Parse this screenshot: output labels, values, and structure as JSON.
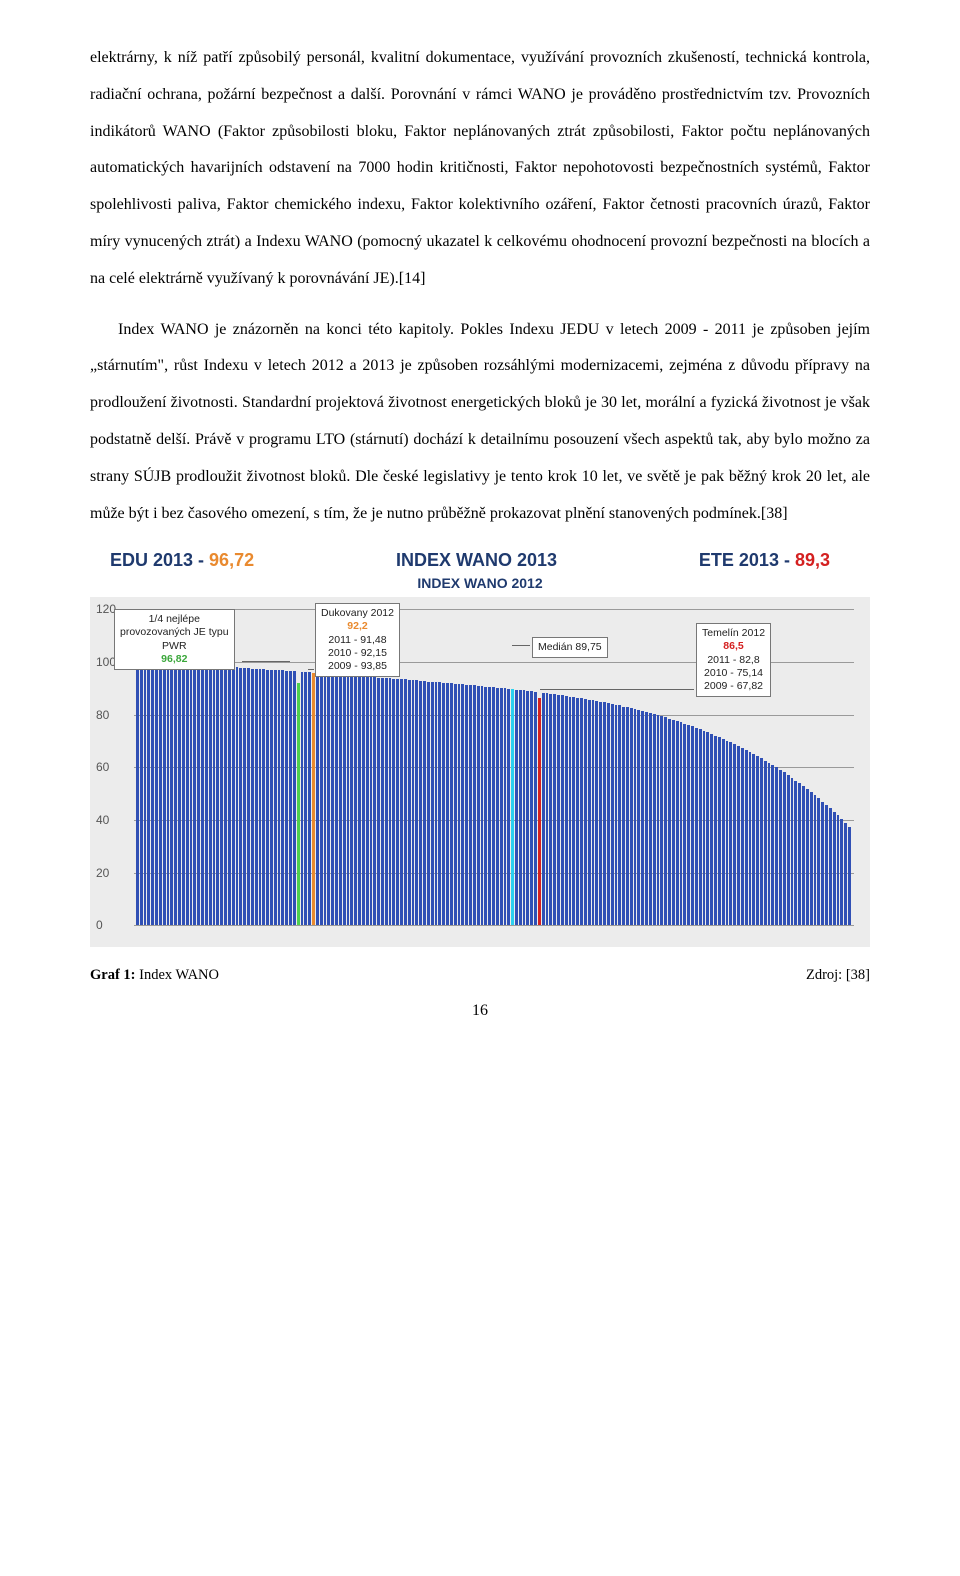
{
  "paragraphs": {
    "p1": "elektrárny, k níž patří způsobilý personál, kvalitní dokumentace, využívání provozních zkušeností, technická kontrola, radiační ochrana, požární bezpečnost a další. Porovnání v rámci WANO je prováděno prostřednictvím tzv. Provozních indikátorů WANO (Faktor způsobilosti bloku, Faktor neplánovaných ztrát způsobilosti, Faktor počtu neplánovaných automatických havarijních odstavení na 7000 hodin kritičnosti, Faktor nepohotovosti bezpečnostních systémů, Faktor spolehlivosti paliva, Faktor chemického indexu, Faktor kolektivního ozáření, Faktor četnosti pracovních úrazů, Faktor míry vynucených ztrát) a Indexu WANO (pomocný ukazatel k celkovému ohodnocení provozní bezpečnosti na blocích a na celé elektrárně využívaný k porovnávání JE).[14]",
    "p2": "Index WANO je znázorněn na konci této kapitoly. Pokles Indexu JEDU v letech 2009 - 2011 je způsoben jejím „stárnutím\", růst Indexu v letech 2012 a 2013 je způsoben rozsáhlými modernizacemi, zejména z důvodu přípravy na prodloužení životnosti. Standardní projektová životnost energetických bloků je 30 let, morální a fyzická životnost je však podstatně delší. Právě v programu LTO (stárnutí) dochází k detailnímu posouzení všech aspektů tak, aby bylo možno za strany SÚJB prodloužit životnost bloků. Dle české legislativy je tento krok 10 let, ve světě je pak běžný krok 20 let, ale může být i bez časového omezení, s tím, že je nutno průběžně prokazovat plnění stanovených podmínek.[38]"
  },
  "chart": {
    "header": {
      "edu_label": "EDU 2013 - ",
      "edu_value": "96,72",
      "center": "INDEX WANO 2013",
      "ete_label": "ETE 2013 - ",
      "ete_value": "89,3"
    },
    "subtitle": "INDEX WANO 2012",
    "ylim": [
      0,
      120
    ],
    "yticks": [
      0,
      20,
      40,
      60,
      80,
      100,
      120
    ],
    "bar_color": "#3050b5",
    "highlight": {
      "green_idx": 42,
      "green_color": "#4fd04f",
      "orange_idx": 46,
      "orange_color": "#e98a2f",
      "cyan_idx": 98,
      "cyan_color": "#2ad0f0",
      "red_idx": 105,
      "red_color": "#d42020"
    },
    "bars": [
      100,
      100,
      100,
      100,
      100,
      100,
      100,
      100,
      100,
      100,
      99.8,
      99.7,
      99.5,
      99.4,
      99.3,
      99.2,
      99.1,
      99,
      98.9,
      98.8,
      98.7,
      98.6,
      98.5,
      98.3,
      98.2,
      98.1,
      98,
      97.9,
      97.8,
      97.6,
      97.5,
      97.4,
      97.3,
      97.2,
      97.1,
      97,
      96.9,
      96.8,
      96.82,
      96.7,
      96.6,
      96.5,
      92.2,
      96.3,
      96.2,
      96.1,
      96,
      95.8,
      95.6,
      95.5,
      95.4,
      95.3,
      95.2,
      95.1,
      95,
      94.9,
      94.8,
      94.7,
      94.6,
      94.5,
      94.4,
      94.3,
      94.2,
      94.1,
      94,
      93.9,
      93.8,
      93.7,
      93.6,
      93.5,
      93.4,
      93.2,
      93.1,
      93,
      92.9,
      92.8,
      92.6,
      92.5,
      92.4,
      92.3,
      92.2,
      92.1,
      92,
      91.8,
      91.7,
      91.5,
      91.4,
      91.3,
      91.2,
      91,
      90.8,
      90.7,
      90.6,
      90.4,
      90.2,
      90.1,
      90,
      89.8,
      89.75,
      89.5,
      89.3,
      89.2,
      89.1,
      88.9,
      88.7,
      86.5,
      88.3,
      88.1,
      87.9,
      87.7,
      87.5,
      87.3,
      87.1,
      86.9,
      86.7,
      86.4,
      86.2,
      86,
      85.7,
      85.5,
      85.2,
      85,
      84.7,
      84.4,
      84.1,
      83.8,
      83.5,
      83.1,
      82.8,
      82.5,
      82.1,
      81.8,
      81.4,
      81,
      80.6,
      80.2,
      79.8,
      79.4,
      79,
      78.5,
      78.1,
      77.6,
      77.1,
      76.6,
      76.1,
      75.6,
      75,
      74.5,
      73.9,
      73.3,
      72.7,
      72.1,
      71.5,
      70.8,
      70.2,
      69.5,
      68.8,
      68.1,
      67.4,
      66.6,
      65.9,
      65.1,
      64.3,
      63.5,
      62.6,
      61.8,
      60.9,
      60,
      59,
      58.1,
      57.1,
      56.1,
      55,
      54,
      52.9,
      51.7,
      50.6,
      49.4,
      48.2,
      47,
      45.7,
      44.4,
      43.1,
      41.8,
      40.4,
      39,
      37.5
    ],
    "annotations": {
      "pwr": {
        "line1": "1/4 nejlépe",
        "line2": "provozovaných JE typu",
        "line3": "PWR",
        "line4": "96,82"
      },
      "dukovany": {
        "title": "Dukovany 2012",
        "v2012": "92,2",
        "l2011": "2011 - 91,48",
        "l2010": "2010 - 92,15",
        "l2009": "2009 - 93,85"
      },
      "median": {
        "text": "Medián  89,75"
      },
      "temelin": {
        "title": "Temelín 2012",
        "v2012": "86,5",
        "l2011": "2011 - 82,8",
        "l2010": "2010 - 75,14",
        "l2009": "2009 - 67,82"
      }
    }
  },
  "caption": {
    "bold": "Graf 1: ",
    "text": "Index WANO"
  },
  "source": "Zdroj: [38]",
  "page_number": "16"
}
